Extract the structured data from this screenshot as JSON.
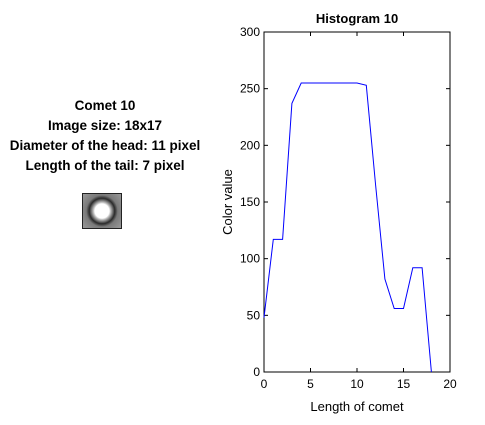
{
  "comet_info": {
    "title": "Comet 10",
    "image_size": "Image size: 18x17",
    "head_diameter": "Diameter of the head: 11 pixel",
    "tail_length": "Length of the tail: 7 pixel"
  },
  "thumbnail": {
    "icon": "comet-thumbnail"
  },
  "chart_data": {
    "type": "line",
    "title": "Histogram 10",
    "xlabel": "Length of comet",
    "ylabel": "Color value",
    "xlim": [
      0,
      20
    ],
    "ylim": [
      0,
      300
    ],
    "xticks": [
      0,
      5,
      10,
      15,
      20
    ],
    "yticks": [
      0,
      50,
      100,
      150,
      200,
      250,
      300
    ],
    "grid": false,
    "line_color": "#0000ff",
    "series": [
      {
        "x": [
          0,
          1,
          2,
          3,
          4,
          5,
          6,
          7,
          8,
          9,
          10,
          11,
          12,
          13,
          14,
          15,
          16,
          17,
          18
        ],
        "values": [
          48,
          117,
          117,
          237,
          255,
          255,
          255,
          255,
          255,
          255,
          255,
          253,
          165,
          82,
          56,
          56,
          92,
          92,
          0
        ]
      }
    ]
  }
}
